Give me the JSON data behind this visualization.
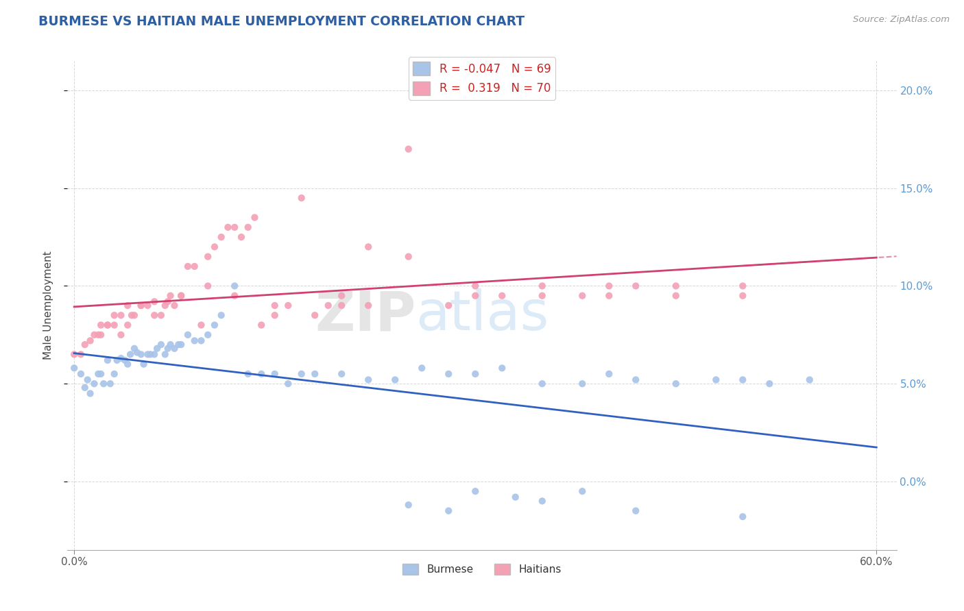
{
  "title": "BURMESE VS HAITIAN MALE UNEMPLOYMENT CORRELATION CHART",
  "source": "Source: ZipAtlas.com",
  "ylabel": "Male Unemployment",
  "burmese_color": "#a8c4e8",
  "haitian_color": "#f4a0b5",
  "burmese_line_color": "#3060c0",
  "haitian_line_color": "#d04070",
  "burmese_R": -0.047,
  "burmese_N": 69,
  "haitian_R": 0.319,
  "haitian_N": 70,
  "xlim_min": -0.005,
  "xlim_max": 0.615,
  "ylim_min": -0.035,
  "ylim_max": 0.215,
  "xtick_positions": [
    0.0,
    0.6
  ],
  "xtick_labels": [
    "0.0%",
    "60.0%"
  ],
  "yticks": [
    0.0,
    0.05,
    0.1,
    0.15,
    0.2
  ],
  "ytick_labels": [
    "0.0%",
    "5.0%",
    "10.0%",
    "15.0%",
    "20.0%"
  ],
  "burmese_x": [
    0.0,
    0.005,
    0.008,
    0.01,
    0.012,
    0.015,
    0.018,
    0.02,
    0.022,
    0.025,
    0.027,
    0.03,
    0.032,
    0.035,
    0.038,
    0.04,
    0.042,
    0.045,
    0.047,
    0.05,
    0.052,
    0.055,
    0.057,
    0.06,
    0.062,
    0.065,
    0.068,
    0.07,
    0.072,
    0.075,
    0.078,
    0.08,
    0.085,
    0.09,
    0.095,
    0.1,
    0.105,
    0.11,
    0.12,
    0.13,
    0.14,
    0.15,
    0.16,
    0.17,
    0.18,
    0.2,
    0.22,
    0.24,
    0.26,
    0.28,
    0.3,
    0.32,
    0.35,
    0.38,
    0.4,
    0.42,
    0.45,
    0.48,
    0.5,
    0.52,
    0.55,
    0.3,
    0.35,
    0.25,
    0.28,
    0.33,
    0.38,
    0.42,
    0.5
  ],
  "burmese_y": [
    0.058,
    0.055,
    0.048,
    0.052,
    0.045,
    0.05,
    0.055,
    0.055,
    0.05,
    0.062,
    0.05,
    0.055,
    0.062,
    0.063,
    0.062,
    0.06,
    0.065,
    0.068,
    0.066,
    0.065,
    0.06,
    0.065,
    0.065,
    0.065,
    0.068,
    0.07,
    0.065,
    0.068,
    0.07,
    0.068,
    0.07,
    0.07,
    0.075,
    0.072,
    0.072,
    0.075,
    0.08,
    0.085,
    0.1,
    0.055,
    0.055,
    0.055,
    0.05,
    0.055,
    0.055,
    0.055,
    0.052,
    0.052,
    0.058,
    0.055,
    0.055,
    0.058,
    0.05,
    0.05,
    0.055,
    0.052,
    0.05,
    0.052,
    0.052,
    0.05,
    0.052,
    -0.005,
    -0.01,
    -0.012,
    -0.015,
    -0.008,
    -0.005,
    -0.015,
    -0.018
  ],
  "haitian_x": [
    0.0,
    0.005,
    0.008,
    0.012,
    0.015,
    0.018,
    0.02,
    0.025,
    0.03,
    0.035,
    0.04,
    0.043,
    0.045,
    0.05,
    0.055,
    0.06,
    0.065,
    0.068,
    0.07,
    0.072,
    0.075,
    0.08,
    0.085,
    0.09,
    0.095,
    0.1,
    0.105,
    0.11,
    0.115,
    0.12,
    0.125,
    0.13,
    0.135,
    0.14,
    0.15,
    0.16,
    0.17,
    0.18,
    0.19,
    0.2,
    0.22,
    0.25,
    0.28,
    0.3,
    0.32,
    0.35,
    0.38,
    0.4,
    0.42,
    0.45,
    0.5,
    0.22,
    0.25,
    0.3,
    0.35,
    0.4,
    0.45,
    0.5,
    0.2,
    0.15,
    0.1,
    0.12,
    0.08,
    0.06,
    0.05,
    0.04,
    0.035,
    0.03,
    0.025,
    0.02
  ],
  "haitian_y": [
    0.065,
    0.065,
    0.07,
    0.072,
    0.075,
    0.075,
    0.075,
    0.08,
    0.08,
    0.075,
    0.08,
    0.085,
    0.085,
    0.09,
    0.09,
    0.092,
    0.085,
    0.09,
    0.092,
    0.095,
    0.09,
    0.095,
    0.11,
    0.11,
    0.08,
    0.115,
    0.12,
    0.125,
    0.13,
    0.13,
    0.125,
    0.13,
    0.135,
    0.08,
    0.085,
    0.09,
    0.145,
    0.085,
    0.09,
    0.09,
    0.09,
    0.17,
    0.09,
    0.095,
    0.095,
    0.095,
    0.095,
    0.095,
    0.1,
    0.095,
    0.095,
    0.12,
    0.115,
    0.1,
    0.1,
    0.1,
    0.1,
    0.1,
    0.095,
    0.09,
    0.1,
    0.095,
    0.095,
    0.085,
    0.09,
    0.09,
    0.085,
    0.085,
    0.08,
    0.08
  ]
}
